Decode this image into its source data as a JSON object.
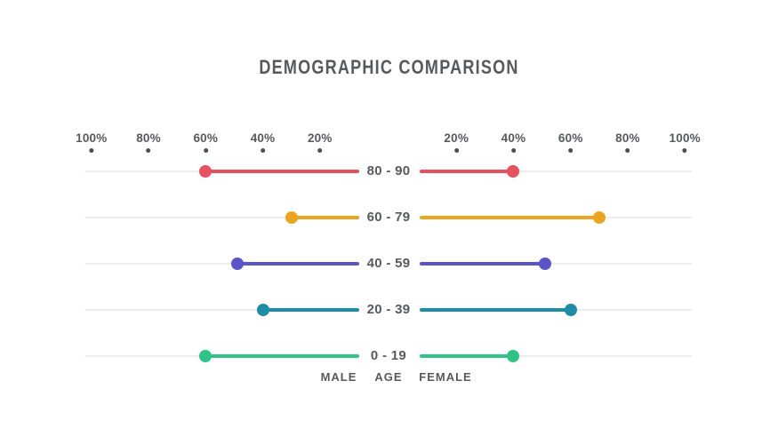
{
  "title": "DEMOGRAPHIC COMPARISON",
  "chart_data": {
    "type": "dumbbell-tornado",
    "title": "DEMOGRAPHIC COMPARISON",
    "categories": [
      "80 - 90",
      "60 - 79",
      "40 - 59",
      "20 - 39",
      "0 - 19"
    ],
    "series": [
      {
        "name": "MALE",
        "values": [
          60,
          30,
          49,
          40,
          60
        ]
      },
      {
        "name": "FEMALE",
        "values": [
          40,
          70,
          51,
          60,
          40
        ]
      }
    ],
    "row_colors": [
      "#e5515c",
      "#eba41d",
      "#5a54c8",
      "#1d8ca5",
      "#2ec487"
    ],
    "axis_ticks_left": [
      "100%",
      "80%",
      "60%",
      "40%",
      "20%"
    ],
    "axis_ticks_right": [
      "20%",
      "40%",
      "60%",
      "80%",
      "100%"
    ],
    "axis_max": 100,
    "axis_step": 20,
    "xlabel_left": "MALE",
    "xlabel_center": "AGE",
    "xlabel_right": "FEMALE",
    "colors": {
      "track": "#ededed",
      "tick_dot": "#4d4d4f",
      "text": "#58595b",
      "background": "#ffffff"
    },
    "legend_position": "bottom-center",
    "grid": false
  }
}
